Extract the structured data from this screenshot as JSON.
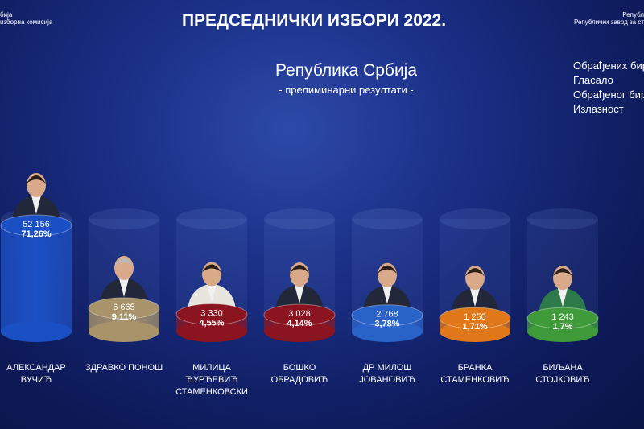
{
  "chart_data": {
    "type": "bar",
    "title": "ПРЕДСЕДНИЧКИ ИЗБОРИ 2022.",
    "subtitle": "Република Србија",
    "note": "- прелиминарни резултати -",
    "logo_left": [
      "бија",
      "изборна комисија"
    ],
    "logo_right": [
      "Републ",
      "Републички завод за ст"
    ],
    "stats_labels": [
      "Обрађених бир",
      "Гласало",
      "Обрађеног бир",
      "Излазност"
    ],
    "categories": [
      "АЛЕКСАНДАР ВУЧИЋ",
      "ЗДРАВКО ПОНОШ",
      "МИЛИЦА ЂУРЂЕВИЋ СТАМЕНКОВСКИ",
      "БОШКО ОБРАДОВИЋ",
      "ДР МИЛОШ ЈОВАНОВИЋ",
      "БРАНКА СТАМЕНКОВИЋ",
      "БИЉАНА СТОЈКОВИЋ"
    ],
    "values": [
      52156,
      6665,
      3330,
      3028,
      2768,
      1250,
      1243
    ],
    "value_labels": [
      "52 156",
      "6 665",
      "3 330",
      "3 028",
      "2 768",
      "1 250",
      "1 243"
    ],
    "percent_labels": [
      "71,26%",
      "9,11%",
      "4,55%",
      "4,14%",
      "3,78%",
      "1,71%",
      "1,7%"
    ],
    "colors": [
      "#1b4fc4",
      "#a8936a",
      "#8a1420",
      "#8a1420",
      "#2a63c8",
      "#e0781a",
      "#3f9a3a"
    ]
  }
}
